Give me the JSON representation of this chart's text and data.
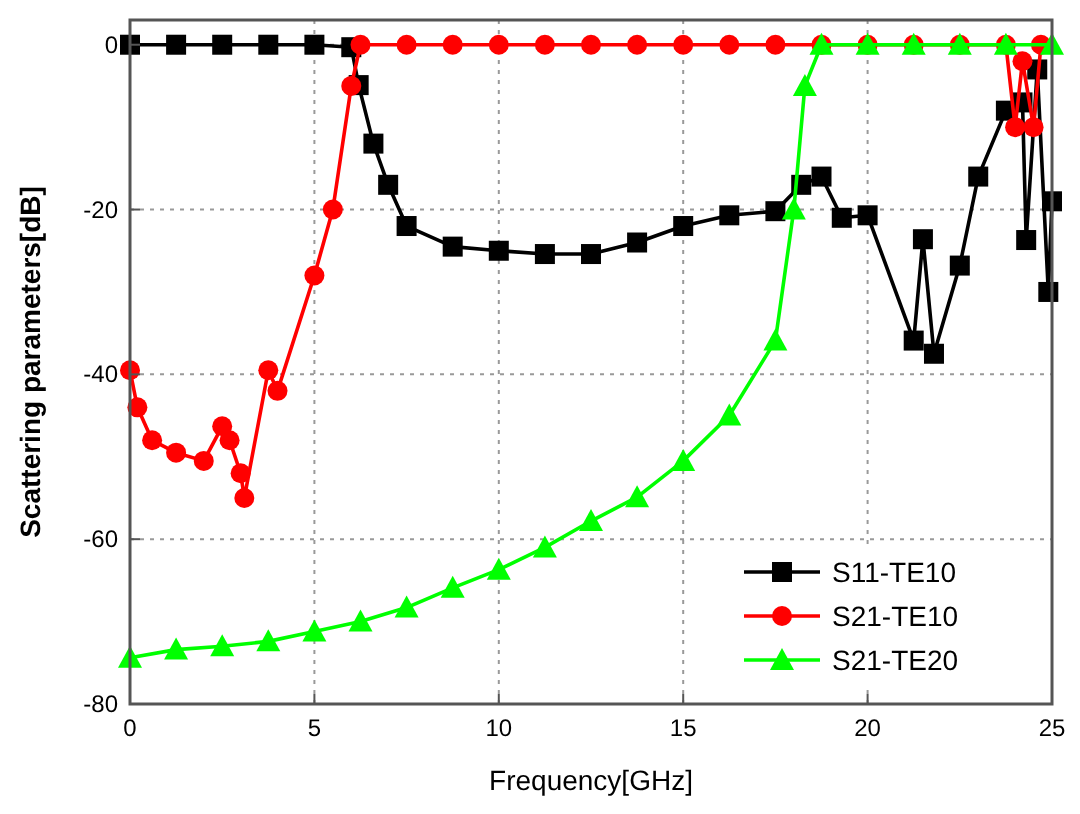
{
  "chart_data": {
    "type": "line",
    "xlabel": "Frequency[GHz]",
    "ylabel": "Scattering parameters[dB]",
    "xlim": [
      0,
      25
    ],
    "ylim": [
      -80,
      3
    ],
    "xticks": [
      0,
      5,
      10,
      15,
      20,
      25
    ],
    "yticks": [
      -80,
      -60,
      -40,
      -20,
      0
    ],
    "grid": true,
    "legend": "bottom right",
    "line_style": "solid",
    "series": [
      {
        "name": "S11-TE10",
        "color": "#000000",
        "marker": "square",
        "x": [
          0,
          1.25,
          2.5,
          3.75,
          5,
          6,
          6.2,
          6.6,
          7,
          7.5,
          8.75,
          10,
          11.25,
          12.5,
          13.75,
          15,
          16.25,
          17.5,
          18.2,
          18.75,
          19.3,
          20,
          21.25,
          21.5,
          21.8,
          22.5,
          23,
          23.75,
          24.2,
          24.3,
          24.6,
          24.9,
          25
        ],
        "values": [
          0,
          0,
          0,
          0,
          0,
          -0.3,
          -4.9,
          -12,
          -17,
          -22,
          -24.5,
          -25,
          -25.4,
          -25.4,
          -24,
          -22,
          -20.7,
          -20.2,
          -17,
          -16,
          -21,
          -20.7,
          -35.9,
          -23.6,
          -37.5,
          -26.8,
          -16,
          -8,
          -7,
          -23.7,
          -3,
          -30,
          -19
        ]
      },
      {
        "name": "S21-TE10",
        "color": "#ff0000",
        "marker": "circle",
        "x": [
          0,
          0.2,
          0.6,
          1.25,
          2,
          2.5,
          2.7,
          3,
          3.1,
          3.75,
          4,
          5,
          5.5,
          6,
          6.25,
          7.5,
          8.75,
          10,
          11.25,
          12.5,
          13.75,
          15,
          16.25,
          17.5,
          18.75,
          20,
          21.25,
          22.5,
          23.75,
          24,
          24.2,
          24.5,
          24.7
        ],
        "values": [
          -39.5,
          -44,
          -48,
          -49.5,
          -50.5,
          -46.3,
          -48,
          -52,
          -55,
          -39.5,
          -42,
          -28,
          -20,
          -5,
          0,
          0,
          0,
          0,
          0,
          0,
          0,
          0,
          0,
          0,
          0,
          0,
          0,
          0,
          0,
          -10,
          -2,
          -10,
          0
        ]
      },
      {
        "name": "S21-TE20",
        "color": "#00ff00",
        "marker": "triangle",
        "x": [
          0,
          1.25,
          2.5,
          3.75,
          5,
          6.25,
          7.5,
          8.75,
          10,
          11.25,
          12.5,
          13.75,
          15,
          16.25,
          17.5,
          18,
          18.3,
          18.75,
          20,
          21.25,
          22.5,
          23.75,
          25
        ],
        "values": [
          -74.4,
          -73.4,
          -73,
          -72.4,
          -71.2,
          -70,
          -68.3,
          -65.9,
          -63.7,
          -61,
          -57.8,
          -54.9,
          -50.5,
          -45,
          -35.9,
          -20,
          -5,
          0,
          0,
          0,
          0,
          0,
          0
        ]
      }
    ]
  }
}
